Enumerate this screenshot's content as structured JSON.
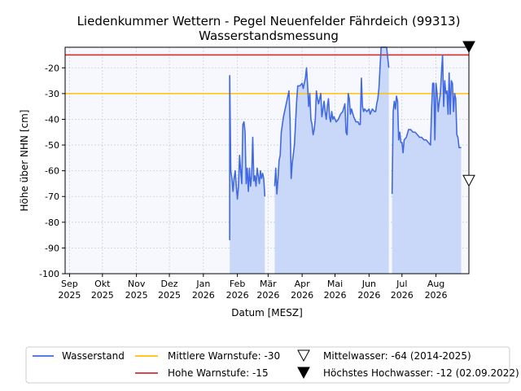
{
  "chart_data": {
    "type": "line",
    "title": "Liedenkummer Wettern - Pegel Neuenfelder Fährdeich (99313)",
    "subtitle": "Wasserstandsmessung",
    "xlabel": "Datum [MESZ]",
    "ylabel": "Höhe über NHN [cm]",
    "ylim": [
      -100,
      -12
    ],
    "xlim": [
      "2025-08-28",
      "2026-08-31"
    ],
    "grid": true,
    "legend_position": "bottom",
    "x_ticks": [
      {
        "date": "2025-09-01",
        "line1": "Sep",
        "line2": "2025"
      },
      {
        "date": "2025-10-01",
        "line1": "Okt",
        "line2": "2025"
      },
      {
        "date": "2025-11-01",
        "line1": "Nov",
        "line2": "2025"
      },
      {
        "date": "2025-12-01",
        "line1": "Dez",
        "line2": "2025"
      },
      {
        "date": "2026-01-01",
        "line1": "Jan",
        "line2": "2026"
      },
      {
        "date": "2026-02-01",
        "line1": "Feb",
        "line2": "2026"
      },
      {
        "date": "2026-03-01",
        "line1": "Mär",
        "line2": "2026"
      },
      {
        "date": "2026-04-01",
        "line1": "Apr",
        "line2": "2026"
      },
      {
        "date": "2026-05-01",
        "line1": "Mai",
        "line2": "2026"
      },
      {
        "date": "2026-06-01",
        "line1": "Jun",
        "line2": "2026"
      },
      {
        "date": "2026-07-01",
        "line1": "Jul",
        "line2": "2026"
      },
      {
        "date": "2026-08-01",
        "line1": "Aug",
        "line2": "2026"
      }
    ],
    "y_ticks": [
      -100,
      -90,
      -80,
      -70,
      -60,
      -50,
      -40,
      -30,
      -20
    ],
    "thresholds": [
      {
        "name": "Mittlere Warnstufe: -30",
        "value": -30,
        "color": "#FFC107"
      },
      {
        "name": "Hohe Warnstufe: -15",
        "value": -15,
        "color": "#D32F2F"
      }
    ],
    "markers": [
      {
        "name": "Mittelwasser: -64 (2014-2025)",
        "value": -64,
        "symbol": "open-triangle-down",
        "x": "2026-08-31"
      },
      {
        "name": "Höchstes Hochwasser: -12 (02.09.2022)",
        "value": -12,
        "symbol": "filled-triangle-down",
        "x": "2026-08-31"
      }
    ],
    "series": [
      {
        "name": "Wasserstand",
        "color": "#4169E1",
        "fill_color": "#C9D8F8",
        "segments": [
          [
            [
              "2026-01-25",
              -87
            ],
            [
              "2026-01-25",
              -23
            ],
            [
              "2026-01-26",
              -60
            ],
            [
              "2026-01-27",
              -63
            ],
            [
              "2026-01-28",
              -68
            ],
            [
              "2026-01-29",
              -63
            ],
            [
              "2026-01-30",
              -60
            ],
            [
              "2026-01-31",
              -66
            ],
            [
              "2026-02-01",
              -71
            ],
            [
              "2026-02-02",
              -66
            ],
            [
              "2026-02-03",
              -54
            ],
            [
              "2026-02-04",
              -60
            ],
            [
              "2026-02-05",
              -65
            ],
            [
              "2026-02-06",
              -42
            ],
            [
              "2026-02-07",
              -41
            ],
            [
              "2026-02-08",
              -45
            ],
            [
              "2026-02-09",
              -65
            ],
            [
              "2026-02-10",
              -59
            ],
            [
              "2026-02-11",
              -68
            ],
            [
              "2026-02-12",
              -59
            ],
            [
              "2026-02-13",
              -66
            ],
            [
              "2026-02-14",
              -62
            ],
            [
              "2026-02-15",
              -47
            ],
            [
              "2026-02-16",
              -64
            ],
            [
              "2026-02-17",
              -62
            ],
            [
              "2026-02-18",
              -66
            ],
            [
              "2026-02-19",
              -59
            ],
            [
              "2026-02-20",
              -62
            ],
            [
              "2026-02-21",
              -65
            ],
            [
              "2026-02-22",
              -60
            ],
            [
              "2026-02-23",
              -63
            ],
            [
              "2026-02-24",
              -61
            ],
            [
              "2026-02-25",
              -63
            ],
            [
              "2026-02-26",
              -70
            ]
          ],
          [
            [
              "2026-03-07",
              -66
            ],
            [
              "2026-03-08",
              -59
            ],
            [
              "2026-03-09",
              -69
            ],
            [
              "2026-03-10",
              -63
            ],
            [
              "2026-03-11",
              -56
            ],
            [
              "2026-03-12",
              -54
            ],
            [
              "2026-03-13",
              -45
            ],
            [
              "2026-03-15",
              -39
            ],
            [
              "2026-03-17",
              -35
            ],
            [
              "2026-03-19",
              -31
            ],
            [
              "2026-03-20",
              -29
            ],
            [
              "2026-03-21",
              -40
            ],
            [
              "2026-03-22",
              -63
            ],
            [
              "2026-03-23",
              -57
            ],
            [
              "2026-03-25",
              -50
            ],
            [
              "2026-03-27",
              -33
            ],
            [
              "2026-03-28",
              -27
            ],
            [
              "2026-03-30",
              -27
            ],
            [
              "2026-04-01",
              -26
            ],
            [
              "2026-04-02",
              -28
            ],
            [
              "2026-04-03",
              -26
            ],
            [
              "2026-04-04",
              -24
            ],
            [
              "2026-04-05",
              -20
            ],
            [
              "2026-04-06",
              -27
            ],
            [
              "2026-04-07",
              -35
            ],
            [
              "2026-04-08",
              -30
            ],
            [
              "2026-04-09",
              -40
            ],
            [
              "2026-04-10",
              -42
            ],
            [
              "2026-04-11",
              -46
            ],
            [
              "2026-04-12",
              -44
            ],
            [
              "2026-04-13",
              -40
            ],
            [
              "2026-04-14",
              -29
            ],
            [
              "2026-04-15",
              -32
            ],
            [
              "2026-04-16",
              -34
            ],
            [
              "2026-04-17",
              -32
            ],
            [
              "2026-04-18",
              -30
            ],
            [
              "2026-04-19",
              -39
            ],
            [
              "2026-04-20",
              -36
            ],
            [
              "2026-04-21",
              -33
            ],
            [
              "2026-04-22",
              -37
            ],
            [
              "2026-04-23",
              -40
            ],
            [
              "2026-04-24",
              -35
            ],
            [
              "2026-04-25",
              -32
            ],
            [
              "2026-04-26",
              -39
            ],
            [
              "2026-04-27",
              -41
            ],
            [
              "2026-04-28",
              -37
            ],
            [
              "2026-04-29",
              -40
            ],
            [
              "2026-04-30",
              -39
            ],
            [
              "2026-05-02",
              -41
            ],
            [
              "2026-05-04",
              -40
            ],
            [
              "2026-05-06",
              -38
            ],
            [
              "2026-05-08",
              -37
            ],
            [
              "2026-05-10",
              -34
            ],
            [
              "2026-05-11",
              -45
            ],
            [
              "2026-05-12",
              -46
            ],
            [
              "2026-05-13",
              -30
            ],
            [
              "2026-05-14",
              -32
            ],
            [
              "2026-05-15",
              -38
            ],
            [
              "2026-05-16",
              -36
            ],
            [
              "2026-05-18",
              -39
            ],
            [
              "2026-05-20",
              -41
            ],
            [
              "2026-05-22",
              -41
            ],
            [
              "2026-05-23",
              -42
            ],
            [
              "2026-05-24",
              -42
            ],
            [
              "2026-05-25",
              -24
            ],
            [
              "2026-05-26",
              -35
            ],
            [
              "2026-05-27",
              -37
            ],
            [
              "2026-05-28",
              -36
            ],
            [
              "2026-05-30",
              -37
            ],
            [
              "2026-06-01",
              -36
            ],
            [
              "2026-06-02",
              -38
            ],
            [
              "2026-06-04",
              -36
            ],
            [
              "2026-06-06",
              -37
            ],
            [
              "2026-06-07",
              -37
            ],
            [
              "2026-06-08",
              -34
            ],
            [
              "2026-06-09",
              -32
            ],
            [
              "2026-06-10",
              -28
            ],
            [
              "2026-06-12",
              -12
            ],
            [
              "2026-06-13",
              -12
            ],
            [
              "2026-06-17",
              -12
            ],
            [
              "2026-06-19",
              -20
            ]
          ],
          [
            [
              "2026-06-22",
              -69
            ],
            [
              "2026-06-23",
              -37
            ],
            [
              "2026-06-24",
              -33
            ],
            [
              "2026-06-25",
              -36
            ],
            [
              "2026-06-26",
              -31
            ],
            [
              "2026-06-27",
              -33
            ],
            [
              "2026-06-28",
              -48
            ],
            [
              "2026-06-29",
              -45
            ],
            [
              "2026-06-30",
              -49
            ],
            [
              "2026-07-01",
              -49
            ],
            [
              "2026-07-02",
              -53
            ],
            [
              "2026-07-03",
              -48
            ],
            [
              "2026-07-05",
              -47
            ],
            [
              "2026-07-07",
              -44
            ],
            [
              "2026-07-09",
              -44
            ],
            [
              "2026-07-11",
              -45
            ],
            [
              "2026-07-13",
              -45
            ],
            [
              "2026-07-15",
              -46
            ],
            [
              "2026-07-17",
              -47
            ],
            [
              "2026-07-19",
              -47
            ],
            [
              "2026-07-21",
              -48
            ],
            [
              "2026-07-23",
              -48
            ],
            [
              "2026-07-25",
              -49
            ],
            [
              "2026-07-27",
              -50
            ],
            [
              "2026-07-28",
              -36
            ],
            [
              "2026-07-29",
              -26
            ],
            [
              "2026-07-30",
              -26
            ],
            [
              "2026-07-31",
              -48
            ],
            [
              "2026-08-01",
              -26
            ],
            [
              "2026-08-02",
              -30
            ],
            [
              "2026-08-03",
              -37
            ],
            [
              "2026-08-04",
              -33
            ],
            [
              "2026-08-05",
              -30
            ],
            [
              "2026-08-06",
              -22
            ],
            [
              "2026-08-07",
              -15
            ],
            [
              "2026-08-08",
              -35
            ],
            [
              "2026-08-09",
              -25
            ],
            [
              "2026-08-10",
              -30
            ],
            [
              "2026-08-11",
              -29
            ],
            [
              "2026-08-12",
              -38
            ],
            [
              "2026-08-13",
              -22
            ],
            [
              "2026-08-14",
              -38
            ],
            [
              "2026-08-15",
              -25
            ],
            [
              "2026-08-16",
              -26
            ],
            [
              "2026-08-17",
              -37
            ],
            [
              "2026-08-18",
              -30
            ],
            [
              "2026-08-19",
              -32
            ],
            [
              "2026-08-20",
              -46
            ],
            [
              "2026-08-21",
              -47
            ],
            [
              "2026-08-22",
              -51
            ],
            [
              "2026-08-24",
              -51
            ]
          ]
        ]
      }
    ]
  }
}
